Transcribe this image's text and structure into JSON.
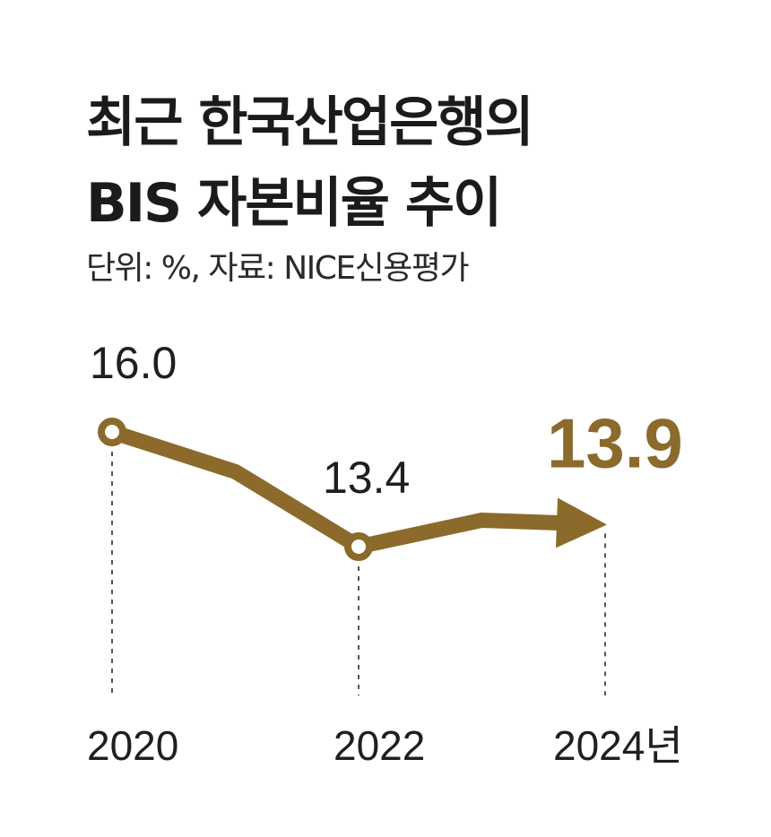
{
  "chart_data": {
    "type": "line",
    "title_lines": [
      "최근 한국산업은행의",
      "BIS 자본비율 추이"
    ],
    "subtitle": "단위: %, 자료: NICE신용평가",
    "x_unit": "년",
    "x": [
      2020,
      2021,
      2022,
      2023,
      2024
    ],
    "x_tick_labels": [
      "2020",
      "2022",
      "2024"
    ],
    "values": [
      16.0,
      15.1,
      13.4,
      14.0,
      13.9
    ],
    "data_labels": [
      {
        "x": 2020,
        "text": "16.0"
      },
      {
        "x": 2022,
        "text": "13.4"
      },
      {
        "x": 2024,
        "text": "13.9",
        "highlight": true
      }
    ],
    "markers": [
      2020,
      2022
    ],
    "arrow_end": true,
    "colors": {
      "line": "#8b6a2b",
      "highlight": "#8b6a2b",
      "marker_fill": "#ffffff"
    }
  }
}
